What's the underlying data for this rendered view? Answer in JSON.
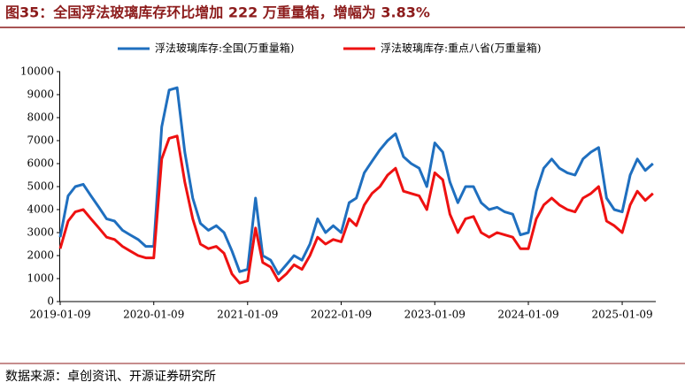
{
  "chart_data": {
    "type": "line",
    "title": "图35：全国浮法玻璃库存环比增加 222 万重量箱，增幅为 3.83%",
    "source": "数据来源：卓创资讯、开源证券研究所",
    "x": [
      "2019-01-09",
      "2019-02-09",
      "2019-03-09",
      "2019-04-09",
      "2019-05-09",
      "2019-06-09",
      "2019-07-09",
      "2019-08-09",
      "2019-09-09",
      "2019-10-09",
      "2019-11-09",
      "2019-12-09",
      "2020-01-09",
      "2020-02-09",
      "2020-03-09",
      "2020-04-09",
      "2020-05-09",
      "2020-06-09",
      "2020-07-09",
      "2020-08-09",
      "2020-09-09",
      "2020-10-09",
      "2020-11-09",
      "2020-12-09",
      "2021-01-09",
      "2021-02-09",
      "2021-03-09",
      "2021-04-09",
      "2021-05-09",
      "2021-06-09",
      "2021-07-09",
      "2021-08-09",
      "2021-09-09",
      "2021-10-09",
      "2021-11-09",
      "2021-12-09",
      "2022-01-09",
      "2022-02-09",
      "2022-03-09",
      "2022-04-09",
      "2022-05-09",
      "2022-06-09",
      "2022-07-09",
      "2022-08-09",
      "2022-09-09",
      "2022-10-09",
      "2022-11-09",
      "2022-12-09",
      "2023-01-09",
      "2023-02-09",
      "2023-03-09",
      "2023-04-09",
      "2023-05-09",
      "2023-06-09",
      "2023-07-09",
      "2023-08-09",
      "2023-09-09",
      "2023-10-09",
      "2023-11-09",
      "2023-12-09",
      "2024-01-09",
      "2024-02-09",
      "2024-03-09",
      "2024-04-09",
      "2024-05-09",
      "2024-06-09",
      "2024-07-09",
      "2024-08-09",
      "2024-09-09",
      "2024-10-09",
      "2024-11-09",
      "2024-12-09",
      "2025-01-09",
      "2025-02-09",
      "2025-03-09",
      "2025-04-09",
      "2025-05-09"
    ],
    "series": [
      {
        "name": "浮法玻璃库存:全国(万重量箱)",
        "color": "#1f6fbf",
        "values": [
          2800,
          4600,
          5000,
          5100,
          4600,
          4100,
          3600,
          3500,
          3100,
          2900,
          2700,
          2400,
          2400,
          7600,
          9200,
          9300,
          6500,
          4500,
          3400,
          3100,
          3300,
          3000,
          2200,
          1300,
          1400,
          4500,
          2000,
          1800,
          1200,
          1600,
          2000,
          1800,
          2500,
          3600,
          3000,
          3300,
          3000,
          4300,
          4500,
          5600,
          6100,
          6600,
          7000,
          7300,
          6300,
          6000,
          5800,
          5000,
          6900,
          6500,
          5200,
          4300,
          5000,
          5000,
          4300,
          4000,
          4100,
          3900,
          3800,
          2900,
          3000,
          4800,
          5800,
          6200,
          5800,
          5600,
          5500,
          6200,
          6500,
          6700,
          4500,
          4000,
          3900,
          5500,
          6200,
          5700,
          6000
        ]
      },
      {
        "name": "浮法玻璃库存:重点八省(万重量箱)",
        "color": "#ee1111",
        "values": [
          2300,
          3500,
          3900,
          4000,
          3600,
          3200,
          2800,
          2700,
          2400,
          2200,
          2000,
          1900,
          1900,
          6200,
          7100,
          7200,
          5200,
          3600,
          2500,
          2300,
          2400,
          2100,
          1200,
          800,
          900,
          3200,
          1700,
          1500,
          900,
          1200,
          1600,
          1400,
          2000,
          2800,
          2500,
          2700,
          2600,
          3600,
          3300,
          4200,
          4700,
          5000,
          5500,
          5800,
          4800,
          4700,
          4600,
          4000,
          5600,
          5300,
          3800,
          3000,
          3600,
          3700,
          3000,
          2800,
          3000,
          2900,
          2800,
          2300,
          2300,
          3600,
          4200,
          4500,
          4200,
          4000,
          3900,
          4500,
          4700,
          5000,
          3500,
          3300,
          3000,
          4200,
          4800,
          4400,
          4700
        ]
      }
    ],
    "xlim": [
      "2019-01-09",
      "2025-05-20"
    ],
    "xticks": [
      "2019-01-09",
      "2020-01-09",
      "2021-01-09",
      "2022-01-09",
      "2023-01-09",
      "2024-01-09",
      "2025-01-09"
    ],
    "ylim": [
      0,
      10000
    ],
    "yticks": [
      0,
      1000,
      2000,
      3000,
      4000,
      5000,
      6000,
      7000,
      8000,
      9000,
      10000
    ],
    "grid": false
  }
}
